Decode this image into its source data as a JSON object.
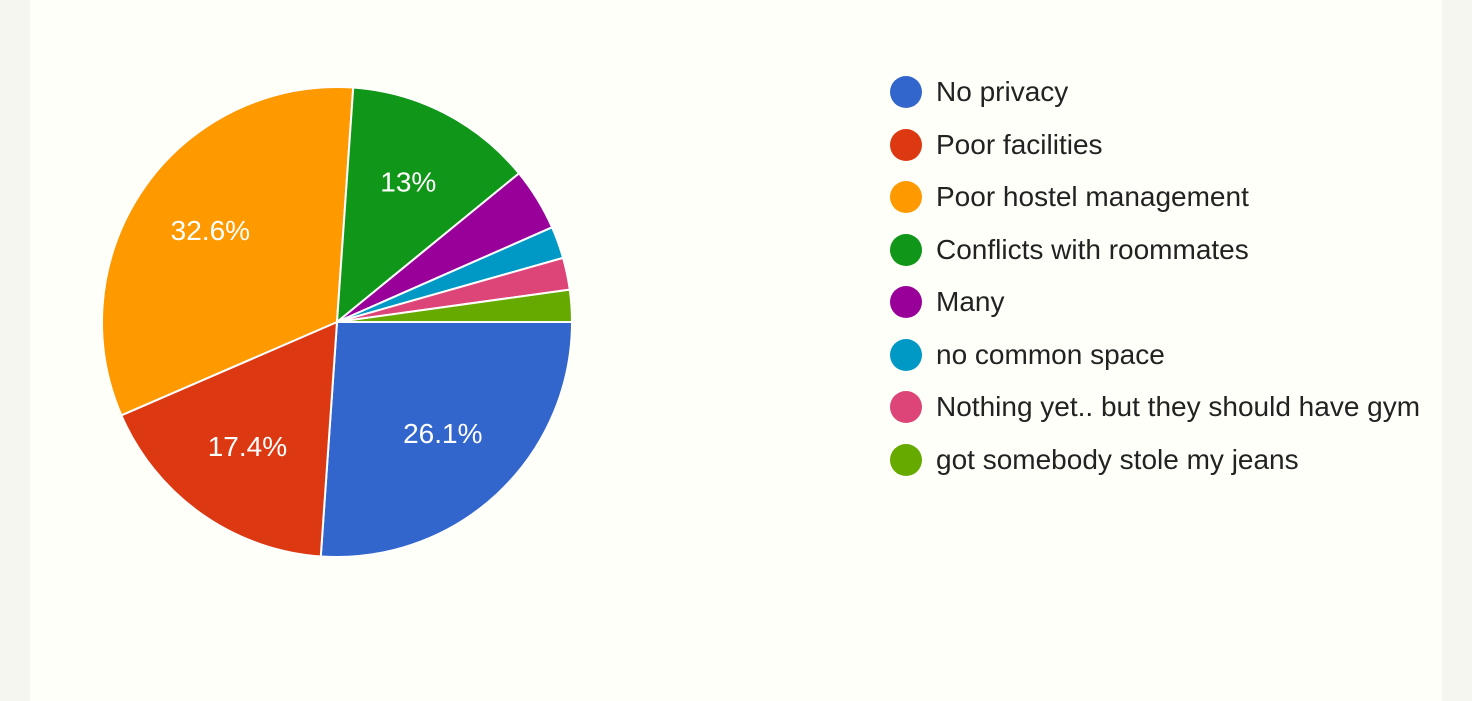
{
  "chart_data": {
    "type": "pie",
    "categories": [
      "No privacy",
      "Poor facilities",
      "Poor hostel management",
      "Conflicts with roommates",
      "Many",
      "no common space",
      "Nothing yet.. but they should have gym",
      "got somebody stole my jeans"
    ],
    "values": [
      26.1,
      17.4,
      32.6,
      13,
      4.3,
      2.2,
      2.2,
      2.2
    ],
    "value_labels": [
      "26.1%",
      "17.4%",
      "32.6%",
      "13%",
      null,
      null,
      null,
      null
    ],
    "colors": [
      "#3366cc",
      "#dc3912",
      "#ff9900",
      "#109618",
      "#990099",
      "#0099c6",
      "#dd4477",
      "#66aa00"
    ],
    "legend": "right"
  }
}
